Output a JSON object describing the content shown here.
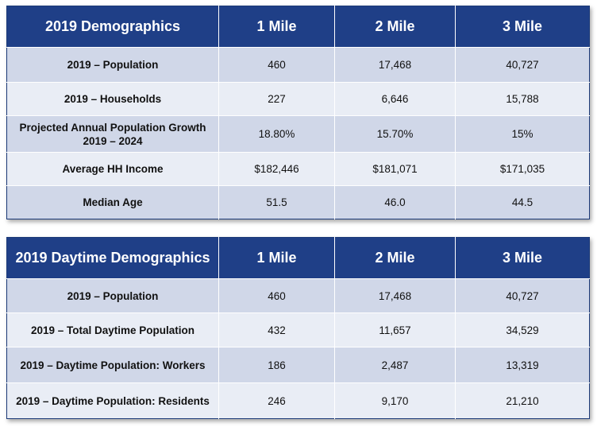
{
  "demographics": {
    "headers": [
      "2019 Demographics",
      "1 Mile",
      "2 Mile",
      "3 Mile"
    ],
    "rows": [
      {
        "label": "2019 – Population",
        "values": [
          "460",
          "17,468",
          "40,727"
        ]
      },
      {
        "label": "2019 – Households",
        "values": [
          "227",
          "6,646",
          "15,788"
        ]
      },
      {
        "label": "Projected Annual Population Growth",
        "label2": "2019 – 2024",
        "values": [
          "18.80%",
          "15.70%",
          "15%"
        ]
      },
      {
        "label": "Average HH Income",
        "values": [
          "$182,446",
          "$181,071",
          "$171,035"
        ]
      },
      {
        "label": "Median Age",
        "values": [
          "51.5",
          "46.0",
          "44.5"
        ]
      }
    ]
  },
  "daytime": {
    "headers": [
      "2019 Daytime Demographics",
      "1 Mile",
      "2 Mile",
      "3 Mile"
    ],
    "rows": [
      {
        "label": "2019 – Population",
        "values": [
          "460",
          "17,468",
          "40,727"
        ]
      },
      {
        "label": "2019 – Total Daytime Population",
        "values": [
          "432",
          "11,657",
          "34,529"
        ]
      },
      {
        "label": "2019 – Daytime Population: Workers",
        "values": [
          "186",
          "2,487",
          "13,319"
        ]
      },
      {
        "label": "2019 – Daytime Population: Residents",
        "values": [
          "246",
          "9,170",
          "21,210"
        ]
      }
    ]
  }
}
